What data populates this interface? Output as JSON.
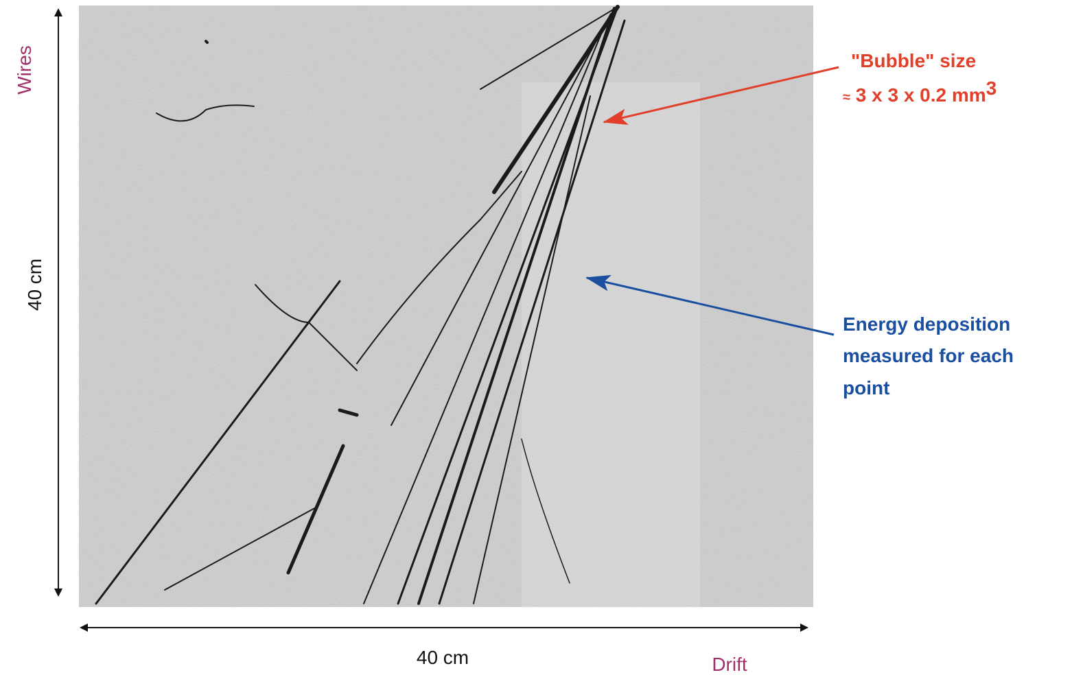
{
  "axes": {
    "vertical_name": "Wires",
    "vertical_length": "40 cm",
    "horizontal_length": "40 cm",
    "horizontal_name": "Drift"
  },
  "annotations": {
    "bubble": {
      "line1": "\"Bubble\" size",
      "approx": "≈",
      "line2": "3 x 3 x 0.2 mm",
      "superscript": "3"
    },
    "energy": {
      "lines": [
        "Energy deposition",
        "measured for each",
        "point"
      ]
    }
  }
}
